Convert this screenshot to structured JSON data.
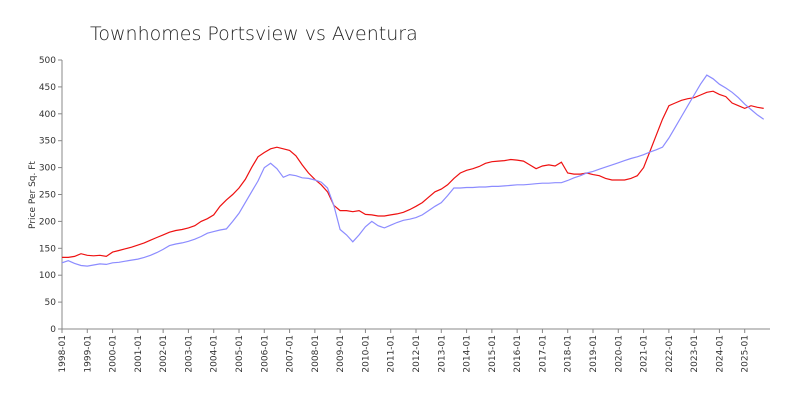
{
  "chart_data": {
    "type": "line",
    "title": "Townhomes Portsview vs Aventura",
    "y_label": "Price Per Sq. Ft",
    "x": [
      "1998-01",
      "1998-04",
      "1998-07",
      "1998-10",
      "1999-01",
      "1999-04",
      "1999-07",
      "1999-10",
      "2000-01",
      "2000-04",
      "2000-07",
      "2000-10",
      "2001-01",
      "2001-04",
      "2001-07",
      "2001-10",
      "2002-01",
      "2002-04",
      "2002-07",
      "2002-10",
      "2003-01",
      "2003-04",
      "2003-07",
      "2003-10",
      "2004-01",
      "2004-04",
      "2004-07",
      "2004-10",
      "2005-01",
      "2005-04",
      "2005-07",
      "2005-10",
      "2006-01",
      "2006-04",
      "2006-07",
      "2006-10",
      "2007-01",
      "2007-04",
      "2007-07",
      "2007-10",
      "2008-01",
      "2008-04",
      "2008-07",
      "2008-10",
      "2009-01",
      "2009-04",
      "2009-07",
      "2009-10",
      "2010-01",
      "2010-04",
      "2010-07",
      "2010-10",
      "2011-01",
      "2011-04",
      "2011-07",
      "2011-10",
      "2012-01",
      "2012-04",
      "2012-07",
      "2012-10",
      "2013-01",
      "2013-04",
      "2013-07",
      "2013-10",
      "2014-01",
      "2014-04",
      "2014-07",
      "2014-10",
      "2015-01",
      "2015-04",
      "2015-07",
      "2015-10",
      "2016-01",
      "2016-04",
      "2016-07",
      "2016-10",
      "2017-01",
      "2017-04",
      "2017-07",
      "2017-10",
      "2018-01",
      "2018-04",
      "2018-07",
      "2018-10",
      "2019-01",
      "2019-04",
      "2019-07",
      "2019-10",
      "2020-01",
      "2020-04",
      "2020-07",
      "2020-10",
      "2021-01",
      "2021-04",
      "2021-07",
      "2021-10",
      "2022-01",
      "2022-04",
      "2022-07",
      "2022-10",
      "2023-01",
      "2023-04",
      "2023-07",
      "2023-10",
      "2024-01",
      "2024-04",
      "2024-07",
      "2024-10",
      "2025-01",
      "2025-04",
      "2025-07",
      "2025-10"
    ],
    "series": [
      {
        "color": "#ee1111",
        "values": [
          133,
          133,
          135,
          140,
          137,
          136,
          137,
          135,
          143,
          146,
          149,
          152,
          156,
          160,
          165,
          170,
          175,
          180,
          183,
          185,
          188,
          192,
          200,
          205,
          212,
          228,
          240,
          250,
          262,
          278,
          300,
          320,
          328,
          335,
          338,
          335,
          332,
          322,
          305,
          290,
          278,
          268,
          255,
          230,
          220,
          220,
          218,
          220,
          213,
          212,
          210,
          210,
          212,
          214,
          217,
          222,
          228,
          235,
          245,
          255,
          260,
          268,
          280,
          290,
          295,
          298,
          302,
          308,
          311,
          312,
          313,
          315,
          314,
          312,
          305,
          298,
          303,
          305,
          303,
          310,
          290,
          288,
          288,
          290,
          287,
          285,
          280,
          277,
          277,
          277,
          280,
          285,
          300,
          330,
          360,
          390,
          415,
          420,
          425,
          428,
          430,
          435,
          440,
          442,
          436,
          432,
          420,
          415,
          410,
          415,
          412,
          410
        ]
      },
      {
        "color": "#8c8cff",
        "values": [
          123,
          127,
          122,
          118,
          117,
          119,
          121,
          120,
          123,
          124,
          126,
          128,
          130,
          133,
          137,
          142,
          148,
          155,
          158,
          160,
          163,
          167,
          172,
          178,
          181,
          184,
          186,
          200,
          215,
          235,
          255,
          275,
          300,
          308,
          298,
          282,
          287,
          285,
          281,
          280,
          277,
          273,
          262,
          230,
          185,
          175,
          162,
          175,
          190,
          200,
          192,
          188,
          193,
          198,
          202,
          204,
          207,
          212,
          220,
          228,
          235,
          248,
          262,
          262,
          263,
          263,
          264,
          264,
          265,
          265,
          266,
          267,
          268,
          268,
          269,
          270,
          271,
          271,
          272,
          272,
          276,
          281,
          285,
          290,
          293,
          297,
          301,
          305,
          309,
          313,
          317,
          320,
          324,
          329,
          333,
          338,
          355,
          375,
          395,
          415,
          435,
          455,
          472,
          465,
          455,
          448,
          440,
          430,
          418,
          408,
          398,
          390
        ]
      }
    ],
    "xlim": [
      "1998-01",
      "2026-01"
    ],
    "xticks": [
      "1998-01",
      "1999-01",
      "2000-01",
      "2001-01",
      "2002-01",
      "2003-01",
      "2004-01",
      "2005-01",
      "2006-01",
      "2007-01",
      "2008-01",
      "2009-01",
      "2010-01",
      "2011-01",
      "2012-01",
      "2013-01",
      "2014-01",
      "2015-01",
      "2016-01",
      "2017-01",
      "2018-01",
      "2019-01",
      "2020-01",
      "2021-01",
      "2022-01",
      "2023-01",
      "2024-01",
      "2025-01"
    ],
    "ylim": [
      0,
      500
    ],
    "yticks": [
      0,
      50,
      100,
      150,
      200,
      250,
      300,
      350,
      400,
      450,
      500
    ]
  }
}
